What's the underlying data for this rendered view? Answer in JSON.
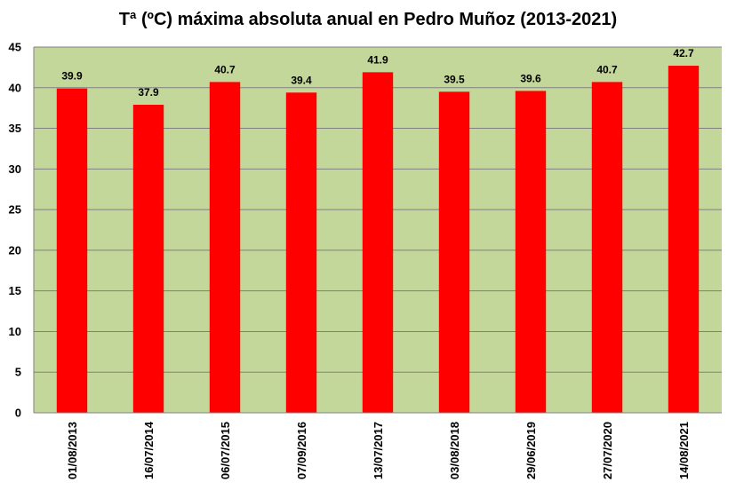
{
  "chart_data": {
    "type": "bar",
    "title": "Tª (ºC) máxima absoluta anual en Pedro Muñoz (2013-2021)",
    "xlabel": "",
    "ylabel": "",
    "categories": [
      "01/08/2013",
      "16/07/2014",
      "06/07/2015",
      "07/09/2016",
      "13/07/2017",
      "03/08/2018",
      "29/06/2019",
      "27/07/2020",
      "14/08/2021"
    ],
    "series": [
      {
        "values": [
          39.9,
          37.9,
          40.7,
          39.4,
          41.9,
          39.5,
          39.6,
          40.7,
          42.7
        ],
        "labels": [
          "39.9",
          "37.9",
          "40.7",
          "39.4",
          "41.9",
          "39.5",
          "39.6",
          "40.7",
          "42.7"
        ]
      }
    ],
    "ylim": [
      0,
      45
    ],
    "yticks": [
      "0",
      "5",
      "10",
      "15",
      "20",
      "25",
      "30",
      "35",
      "40",
      "45"
    ],
    "grid": true,
    "legend": "none",
    "colors": {
      "bar": "#ff0000",
      "plot_bg": "#c4d79b",
      "grid": "#808080"
    }
  }
}
